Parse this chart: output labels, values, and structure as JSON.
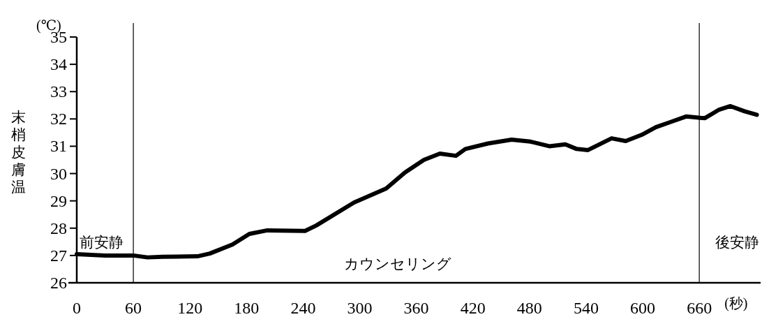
{
  "chart_data": {
    "type": "line",
    "ylabel": "末梢皮膚温",
    "xlabel": "(秒)",
    "x": [
      0,
      30,
      60,
      75,
      91,
      128,
      141,
      165,
      183,
      202,
      242,
      254,
      294,
      328,
      348,
      368,
      385,
      402,
      412,
      436,
      461,
      481,
      501,
      518,
      530,
      542,
      567,
      582,
      599,
      614,
      629,
      646,
      661,
      666,
      681,
      693,
      708,
      721
    ],
    "series": [
      {
        "color": "#000000",
        "values": [
          27.05,
          27.0,
          27.0,
          26.93,
          26.95,
          26.97,
          27.07,
          27.4,
          27.79,
          27.92,
          27.9,
          28.1,
          28.94,
          29.45,
          30.04,
          30.5,
          30.73,
          30.65,
          30.9,
          31.1,
          31.24,
          31.17,
          31.0,
          31.07,
          30.9,
          30.86,
          31.29,
          31.19,
          31.42,
          31.7,
          31.88,
          32.09,
          32.04,
          32.03,
          32.34,
          32.47,
          32.28,
          32.15
        ]
      }
    ],
    "xlim": [
      0,
      725
    ],
    "xticks": [
      0,
      60,
      120,
      180,
      240,
      300,
      360,
      420,
      480,
      540,
      600,
      660
    ],
    "ylim": [
      26,
      35
    ],
    "yticks": [
      26,
      27,
      28,
      29,
      30,
      31,
      32,
      33,
      34,
      35
    ],
    "ref_lines": [
      {
        "axis": "x",
        "value": 60,
        "color": "#000000"
      },
      {
        "axis": "x",
        "value": 660,
        "color": "#000000"
      }
    ],
    "annotations": [
      "(℃)",
      "前安静",
      "カウンセリング",
      "後安静"
    ],
    "grid": false,
    "marker": "none",
    "line_style": "solid"
  }
}
